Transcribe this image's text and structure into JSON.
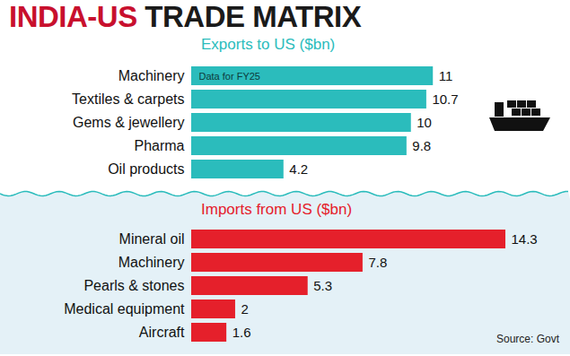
{
  "title": "INDIA-US TRADE MATRIX",
  "source": "Source: Govt",
  "chart_data": [
    {
      "type": "bar",
      "orientation": "horizontal",
      "subtitle": "Exports to US ($bn)",
      "annotation": "Data for FY25",
      "categories": [
        "Machinery",
        "Textiles & carpets",
        "Gems & jewellery",
        "Pharma",
        "Oil products"
      ],
      "values": [
        11,
        10.7,
        10,
        9.8,
        4.2
      ],
      "color": "#2bbcbc",
      "data_labels": true,
      "tick_labels": "y"
    },
    {
      "type": "bar",
      "orientation": "horizontal",
      "subtitle": "Imports from US ($bn)",
      "categories": [
        "Mineral oil",
        "Machinery",
        "Pearls & stones",
        "Medical equipment",
        "Aircraft"
      ],
      "values": [
        14.3,
        7.8,
        5.3,
        2,
        1.6
      ],
      "color": "#e5202b",
      "data_labels": true,
      "tick_labels": "y"
    }
  ]
}
